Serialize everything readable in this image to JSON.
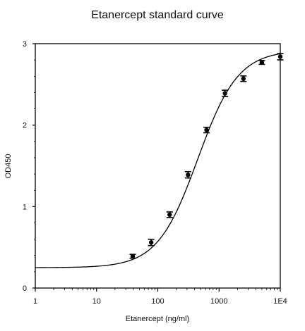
{
  "chart_data": {
    "type": "scatter",
    "title": "Etanercept standard curve",
    "xlabel": "Etanercept (ng/ml)",
    "ylabel": "OD450",
    "xscale": "log",
    "xlim": [
      1,
      10000
    ],
    "ylim": [
      0,
      3
    ],
    "xticks": [
      1,
      10,
      100,
      1000,
      10000
    ],
    "xtick_labels": [
      "1",
      "10",
      "100",
      "1000",
      "1E4"
    ],
    "yticks": [
      0,
      1,
      2,
      3
    ],
    "ytick_labels": [
      "0",
      "1",
      "2",
      "3"
    ],
    "grid": false,
    "legend": "none",
    "series": [
      {
        "x": [
          39,
          78,
          156,
          312,
          625,
          1250,
          2500,
          5000,
          10000
        ],
        "y": [
          0.39,
          0.56,
          0.9,
          1.39,
          1.94,
          2.39,
          2.57,
          2.77,
          2.84
        ],
        "y_err": [
          0.015,
          0.03,
          0.025,
          0.03,
          0.025,
          0.03,
          0.025,
          0.015,
          0.03
        ]
      }
    ],
    "fit_curve": {
      "model": "4PL",
      "bottom": 0.25,
      "top": 2.92,
      "ec50": 450,
      "hill": 1.32
    },
    "colors": {
      "marks": "#000000",
      "axes": "#000000",
      "background": "#ffffff"
    }
  }
}
